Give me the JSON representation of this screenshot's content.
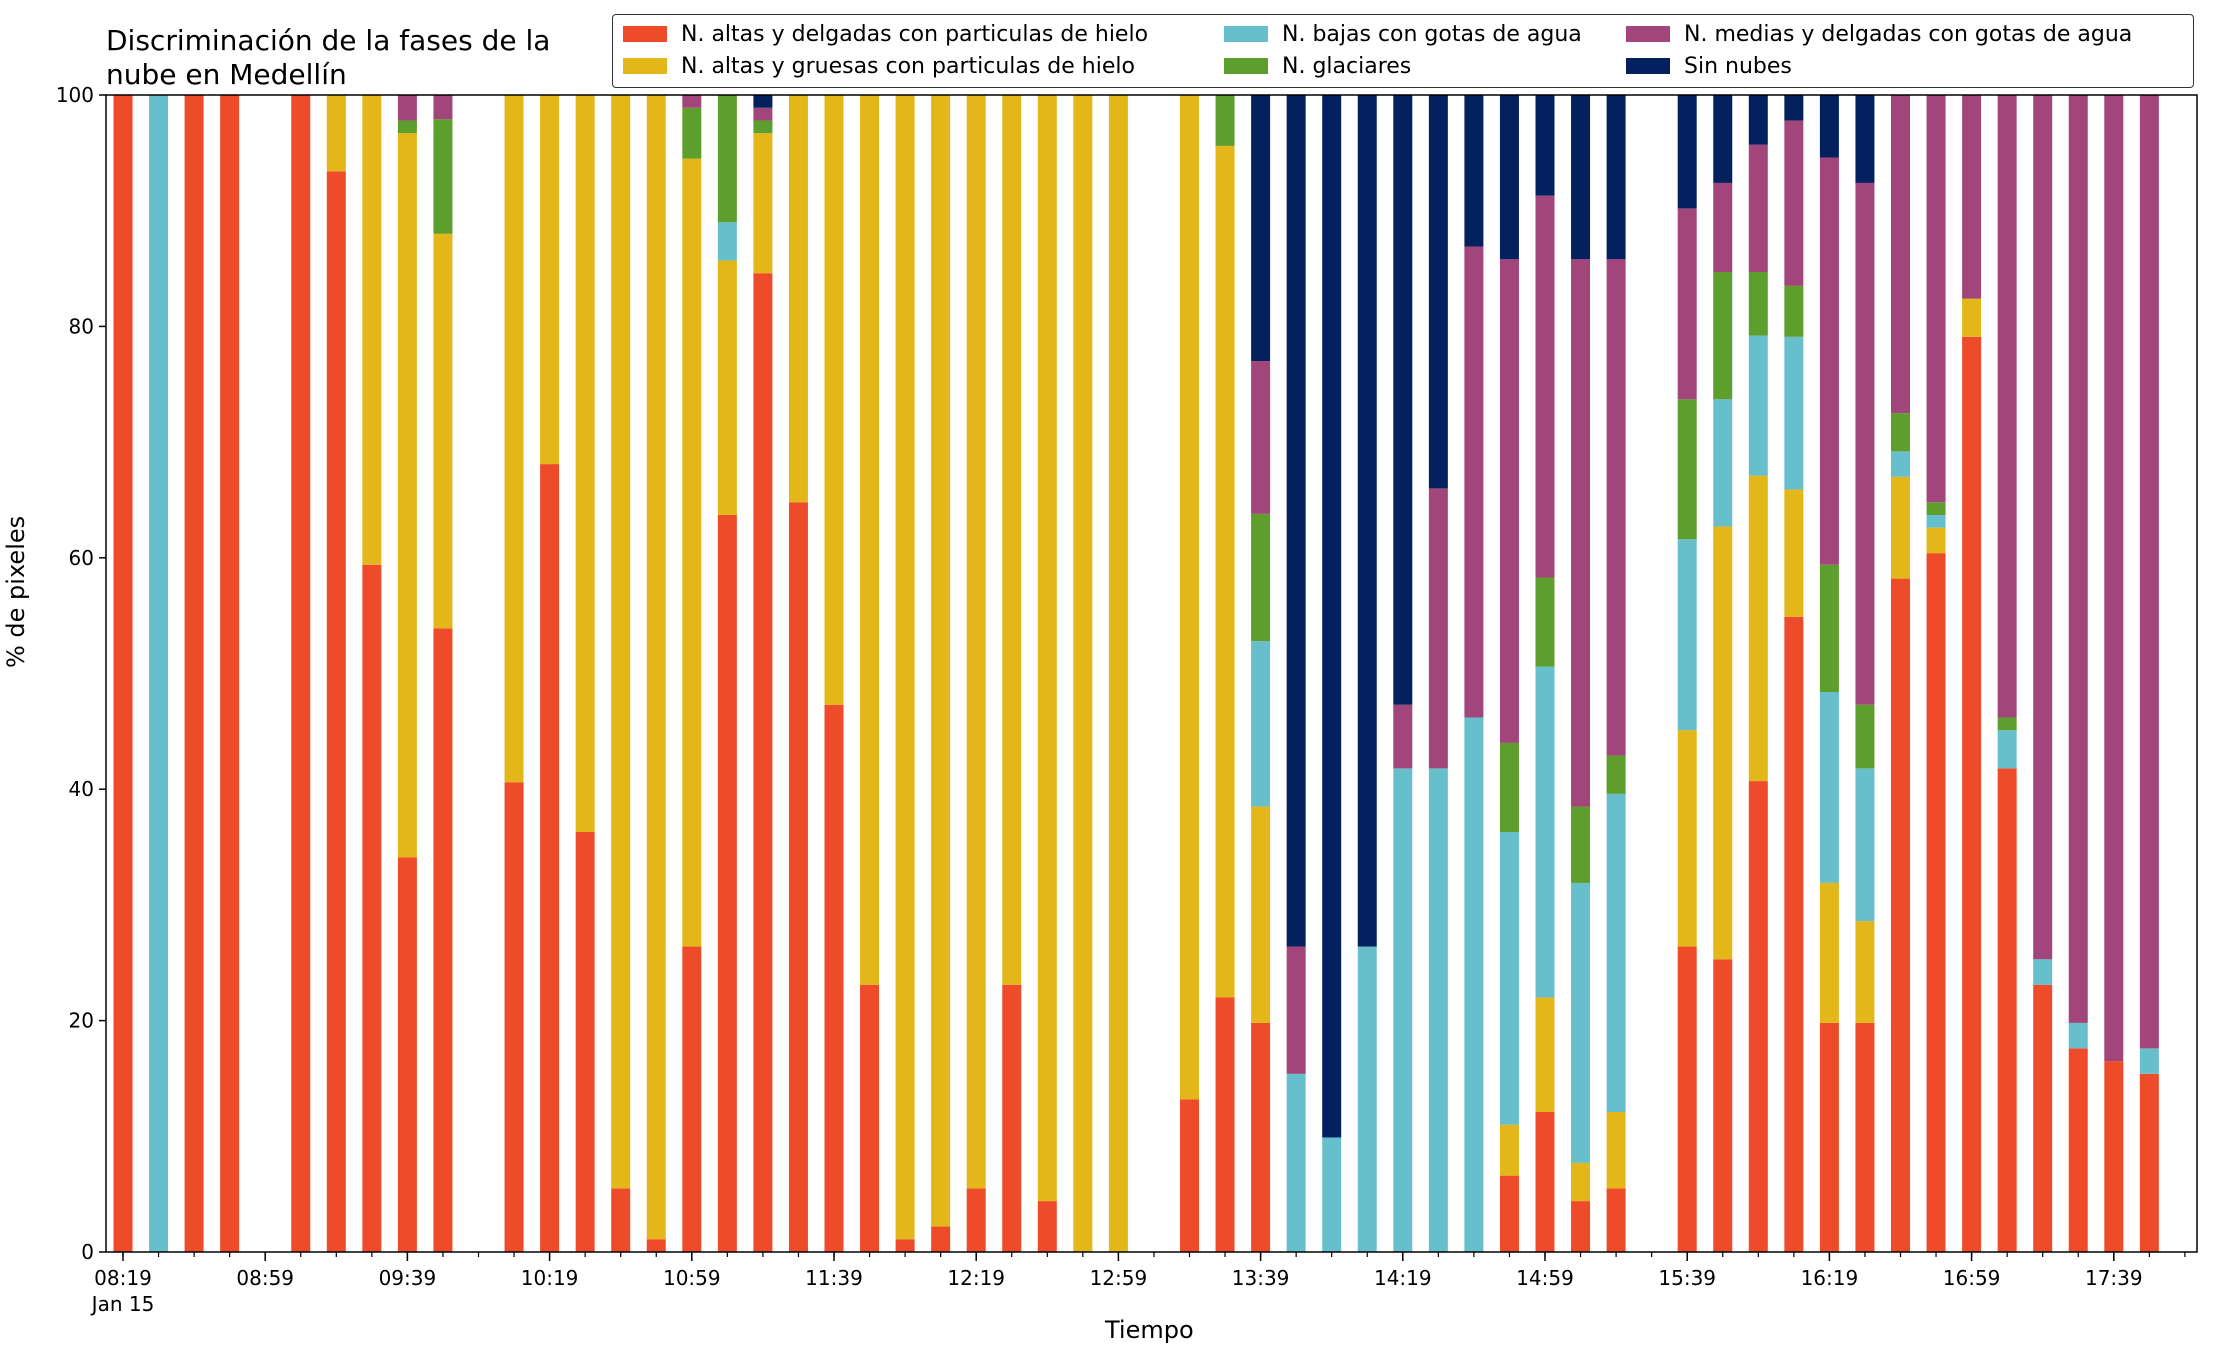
{
  "chart_data": {
    "type": "bar",
    "stacked": true,
    "title": "Discriminación de la fases de la\nnube en Medellín",
    "xlabel": "Tiempo",
    "ylabel": "% de pixeles",
    "ylim": [
      0,
      100
    ],
    "yticks": [
      "0",
      "20",
      "40",
      "60",
      "80",
      "100"
    ],
    "xticks": [
      {
        "slot": 0,
        "label": "08:19",
        "sublabel": "Jan 15"
      },
      {
        "slot": 4,
        "label": "08:59"
      },
      {
        "slot": 8,
        "label": "09:39"
      },
      {
        "slot": 12,
        "label": "10:19"
      },
      {
        "slot": 16,
        "label": "10:59"
      },
      {
        "slot": 20,
        "label": "11:39"
      },
      {
        "slot": 24,
        "label": "12:19"
      },
      {
        "slot": 28,
        "label": "12:59"
      },
      {
        "slot": 32,
        "label": "13:39"
      },
      {
        "slot": 36,
        "label": "14:19"
      },
      {
        "slot": 40,
        "label": "14:59"
      },
      {
        "slot": 44,
        "label": "15:39"
      },
      {
        "slot": 48,
        "label": "16:19"
      },
      {
        "slot": 52,
        "label": "16:59"
      },
      {
        "slot": 56,
        "label": "17:39"
      }
    ],
    "legend_position": "top-right",
    "grid": false,
    "series": [
      {
        "name": "N. altas y delgadas con particulas de hielo",
        "color": "#ee4b2b"
      },
      {
        "name": "N. altas y gruesas con particulas de hielo",
        "color": "#e3b719"
      },
      {
        "name": "N. bajas con gotas de agua",
        "color": "#67bfcc"
      },
      {
        "name": "N. glaciares",
        "color": "#5d9e2d"
      },
      {
        "name": "N. medias y delgadas con gotas de agua",
        "color": "#a2457a"
      },
      {
        "name": "Sin nubes",
        "color": "#02215e"
      }
    ],
    "bars": [
      {
        "slot": 0,
        "values": [
          100,
          0,
          0,
          0,
          0,
          0
        ]
      },
      {
        "slot": 1,
        "values": [
          0,
          0,
          100,
          0,
          0,
          0
        ]
      },
      {
        "slot": 2,
        "values": [
          100,
          0,
          0,
          0,
          0,
          0
        ]
      },
      {
        "slot": 3,
        "values": [
          100,
          0,
          0,
          0,
          0,
          0
        ]
      },
      {
        "slot": 5,
        "values": [
          100,
          0,
          0,
          0,
          0,
          0
        ]
      },
      {
        "slot": 6,
        "values": [
          93.4,
          6.6,
          0,
          0,
          0,
          0
        ]
      },
      {
        "slot": 7,
        "values": [
          59.4,
          40.6,
          0,
          0,
          0,
          0
        ]
      },
      {
        "slot": 8,
        "values": [
          34.1,
          62.6,
          0,
          1.1,
          2.2,
          0
        ]
      },
      {
        "slot": 9,
        "values": [
          53.9,
          34.1,
          0,
          9.9,
          2.1,
          0
        ]
      },
      {
        "slot": 11,
        "values": [
          40.6,
          59.4,
          0,
          0,
          0,
          0
        ]
      },
      {
        "slot": 12,
        "values": [
          68.1,
          31.9,
          0,
          0,
          0,
          0
        ]
      },
      {
        "slot": 13,
        "values": [
          36.3,
          63.7,
          0,
          0,
          0,
          0
        ]
      },
      {
        "slot": 14,
        "values": [
          5.5,
          94.5,
          0,
          0,
          0,
          0
        ]
      },
      {
        "slot": 15,
        "values": [
          1.1,
          98.9,
          0,
          0,
          0,
          0
        ]
      },
      {
        "slot": 16,
        "values": [
          26.4,
          68.1,
          0,
          4.4,
          1.1,
          0
        ]
      },
      {
        "slot": 17,
        "values": [
          63.7,
          22.0,
          3.3,
          11.0,
          0,
          0
        ]
      },
      {
        "slot": 18,
        "values": [
          84.6,
          12.1,
          0,
          1.1,
          1.1,
          1.1
        ]
      },
      {
        "slot": 19,
        "values": [
          64.8,
          35.2,
          0,
          0,
          0,
          0
        ]
      },
      {
        "slot": 20,
        "values": [
          47.3,
          52.7,
          0,
          0,
          0,
          0
        ]
      },
      {
        "slot": 21,
        "values": [
          23.1,
          76.9,
          0,
          0,
          0,
          0
        ]
      },
      {
        "slot": 22,
        "values": [
          1.1,
          98.9,
          0,
          0,
          0,
          0
        ]
      },
      {
        "slot": 23,
        "values": [
          2.2,
          97.8,
          0,
          0,
          0,
          0
        ]
      },
      {
        "slot": 24,
        "values": [
          5.5,
          94.5,
          0,
          0,
          0,
          0
        ]
      },
      {
        "slot": 25,
        "values": [
          23.1,
          76.9,
          0,
          0,
          0,
          0
        ]
      },
      {
        "slot": 26,
        "values": [
          4.4,
          95.6,
          0,
          0,
          0,
          0
        ]
      },
      {
        "slot": 27,
        "values": [
          0,
          100,
          0,
          0,
          0,
          0
        ]
      },
      {
        "slot": 28,
        "values": [
          0,
          100,
          0,
          0,
          0,
          0
        ]
      },
      {
        "slot": 30,
        "values": [
          13.2,
          86.8,
          0,
          0,
          0,
          0
        ]
      },
      {
        "slot": 31,
        "values": [
          22.0,
          73.6,
          0,
          4.4,
          0,
          0
        ]
      },
      {
        "slot": 32,
        "values": [
          19.8,
          18.7,
          14.3,
          11.0,
          13.2,
          23.0
        ]
      },
      {
        "slot": 33,
        "values": [
          0,
          0,
          15.4,
          0,
          11.0,
          73.6
        ]
      },
      {
        "slot": 34,
        "values": [
          0,
          0,
          9.9,
          0,
          0,
          90.1
        ]
      },
      {
        "slot": 35,
        "values": [
          0,
          0,
          26.4,
          0,
          0,
          73.6
        ]
      },
      {
        "slot": 36,
        "values": [
          0,
          0,
          41.8,
          0,
          5.5,
          52.7
        ]
      },
      {
        "slot": 37,
        "values": [
          0,
          0,
          41.8,
          0,
          24.2,
          34.0
        ]
      },
      {
        "slot": 38,
        "values": [
          0,
          0,
          46.2,
          0,
          40.7,
          13.1
        ]
      },
      {
        "slot": 39,
        "values": [
          6.6,
          4.4,
          25.3,
          7.7,
          41.8,
          14.2
        ]
      },
      {
        "slot": 40,
        "values": [
          12.1,
          9.9,
          28.6,
          7.7,
          33.0,
          8.7
        ]
      },
      {
        "slot": 41,
        "values": [
          4.4,
          3.3,
          24.2,
          6.6,
          47.3,
          14.2
        ]
      },
      {
        "slot": 42,
        "values": [
          5.5,
          6.6,
          27.5,
          3.3,
          42.9,
          14.2
        ]
      },
      {
        "slot": 44,
        "values": [
          26.4,
          18.7,
          16.5,
          12.1,
          16.5,
          9.8
        ]
      },
      {
        "slot": 45,
        "values": [
          25.3,
          37.4,
          11.0,
          11.0,
          7.7,
          7.6
        ]
      },
      {
        "slot": 46,
        "values": [
          40.7,
          26.4,
          12.1,
          5.5,
          11.0,
          4.3
        ]
      },
      {
        "slot": 47,
        "values": [
          54.9,
          11.0,
          13.2,
          4.4,
          14.3,
          2.2
        ]
      },
      {
        "slot": 48,
        "values": [
          19.8,
          12.1,
          16.5,
          11.0,
          35.2,
          5.4
        ]
      },
      {
        "slot": 49,
        "values": [
          19.8,
          8.8,
          13.2,
          5.5,
          45.1,
          7.6
        ]
      },
      {
        "slot": 50,
        "values": [
          58.2,
          8.8,
          2.2,
          3.3,
          27.5,
          0
        ]
      },
      {
        "slot": 51,
        "values": [
          60.4,
          2.2,
          1.1,
          1.1,
          35.2,
          0
        ]
      },
      {
        "slot": 52,
        "values": [
          79.1,
          3.3,
          0,
          0,
          17.6,
          0
        ]
      },
      {
        "slot": 53,
        "values": [
          41.8,
          0,
          3.3,
          1.1,
          53.8,
          0
        ]
      },
      {
        "slot": 54,
        "values": [
          23.1,
          0,
          2.2,
          0,
          74.7,
          0
        ]
      },
      {
        "slot": 55,
        "values": [
          17.6,
          0,
          2.2,
          0,
          80.2,
          0
        ]
      },
      {
        "slot": 56,
        "values": [
          16.5,
          0,
          0,
          0,
          83.5,
          0
        ]
      },
      {
        "slot": 57,
        "values": [
          15.4,
          0,
          2.2,
          0,
          82.4,
          0
        ]
      }
    ]
  }
}
